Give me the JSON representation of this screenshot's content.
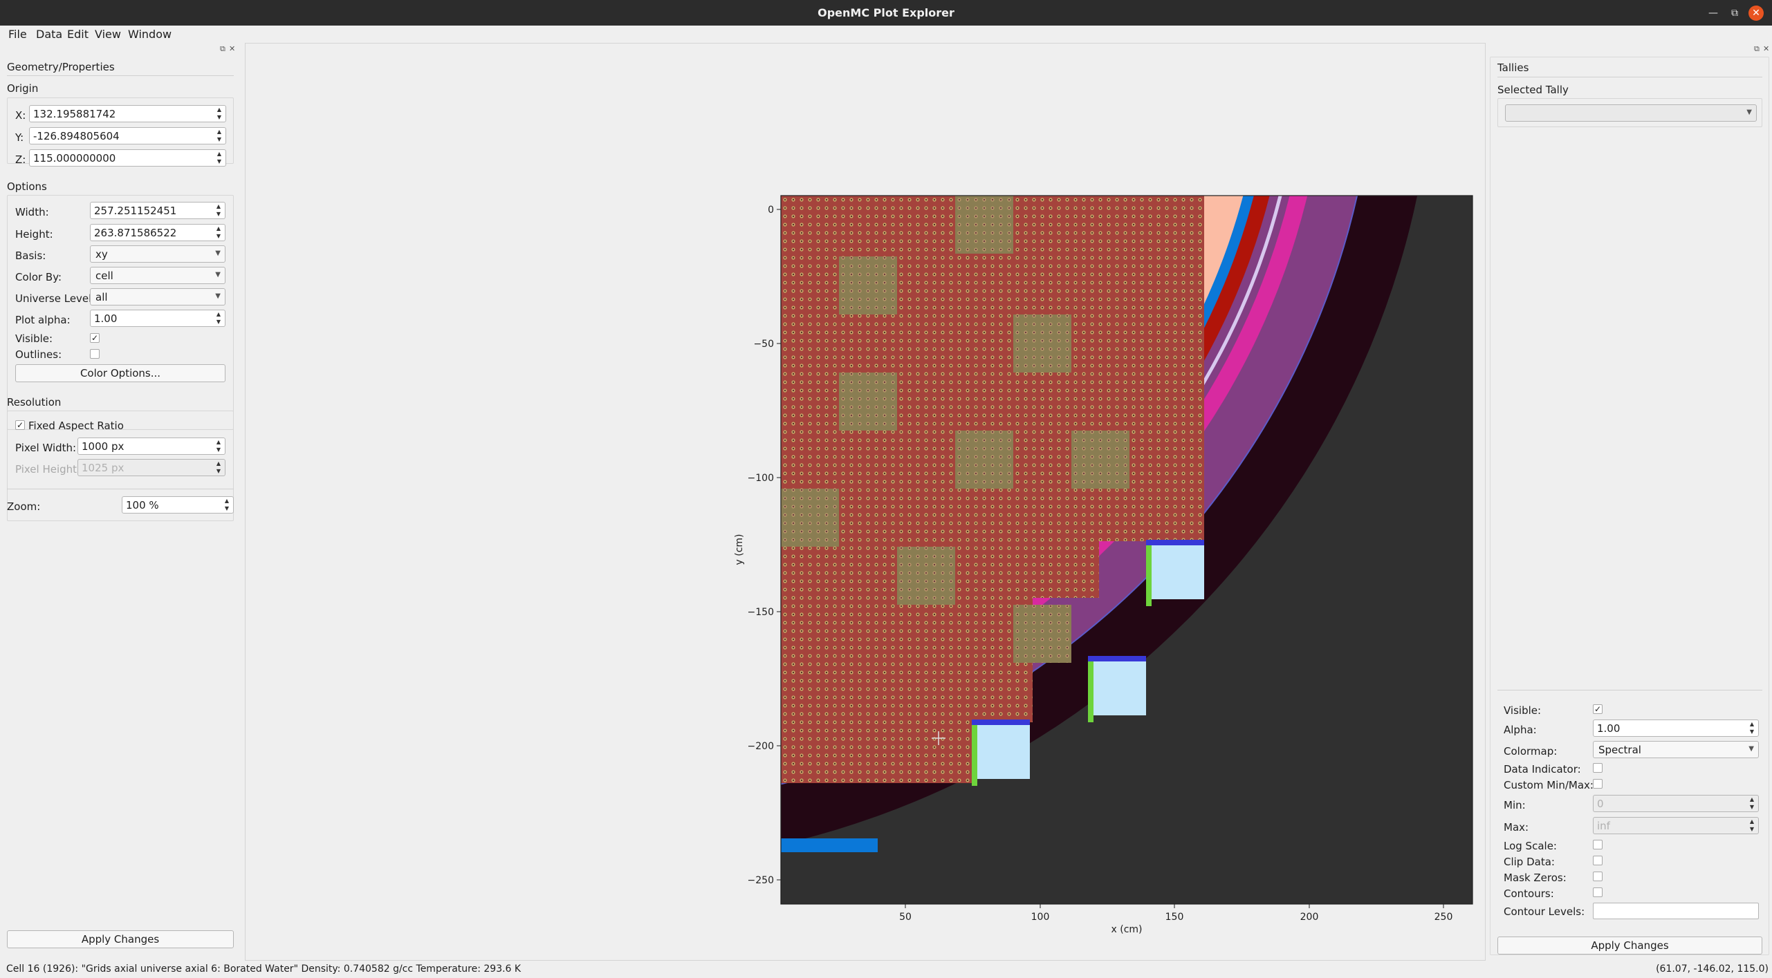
{
  "window": {
    "title": "OpenMC Plot Explorer"
  },
  "menu": [
    "File",
    "Data",
    "Edit",
    "View",
    "Window"
  ],
  "left_panel": {
    "title": "Geometry/Properties",
    "origin": {
      "header": "Origin",
      "x_label": "X:",
      "x_value": "132.195881742",
      "y_label": "Y:",
      "y_value": "-126.894805604",
      "z_label": "Z:",
      "z_value": "115.000000000"
    },
    "options": {
      "header": "Options",
      "width_label": "Width:",
      "width_value": "257.251152451",
      "height_label": "Height:",
      "height_value": "263.871586522",
      "basis_label": "Basis:",
      "basis_value": "xy",
      "colorby_label": "Color By:",
      "colorby_value": "cell",
      "universe_label": "Universe Level:",
      "universe_value": "all",
      "alpha_label": "Plot alpha:",
      "alpha_value": "1.00",
      "visible_label": "Visible:",
      "visible_checked": true,
      "outlines_label": "Outlines:",
      "outlines_checked": false,
      "color_options_button": "Color Options..."
    },
    "resolution": {
      "header": "Resolution",
      "fixed_aspect_label": "Fixed Aspect Ratio",
      "fixed_aspect_checked": true,
      "pixel_width_label": "Pixel Width:",
      "pixel_width_value": "1000 px",
      "pixel_height_label": "Pixel Height:",
      "pixel_height_value": "1025 px"
    },
    "zoom_label": "Zoom:",
    "zoom_value": "100 %",
    "apply_button": "Apply Changes"
  },
  "right_panel": {
    "title": "Tallies",
    "selected_tally_label": "Selected Tally",
    "selected_tally_value": "",
    "visible_label": "Visible:",
    "visible_checked": true,
    "alpha_label": "Alpha:",
    "alpha_value": "1.00",
    "colormap_label": "Colormap:",
    "colormap_value": "Spectral",
    "data_indicator_label": "Data Indicator:",
    "custom_minmax_label": "Custom Min/Max:",
    "min_label": "Min:",
    "min_value": "0",
    "max_label": "Max:",
    "max_value": "inf",
    "log_scale_label": "Log Scale:",
    "clip_data_label": "Clip Data:",
    "mask_zeros_label": "Mask Zeros:",
    "contours_label": "Contours:",
    "contour_levels_label": "Contour Levels:",
    "apply_button": "Apply Changes"
  },
  "plot": {
    "xlabel": "x (cm)",
    "ylabel": "y (cm)",
    "xticks": [
      "50",
      "100",
      "150",
      "200",
      "250"
    ],
    "yticks": [
      "0",
      "−50",
      "−100",
      "−150",
      "−200",
      "−250"
    ],
    "colors": {
      "assembly_red": "#a5433c",
      "assembly_olive": "#8a7d52",
      "reflector_peach": "#fbbca4",
      "water_blue": "#0b78d8",
      "baffle_red": "#b01409",
      "vessel_purple": "#823e83",
      "magenta": "#d82aa0",
      "pink": "#dc7ab8",
      "outer_dark": "#230714",
      "void_gray": "#303030",
      "light_blue": "#c2e6fa",
      "green": "#6ed43c"
    }
  },
  "status": {
    "left": "Cell 16 (1926): \"Grids axial universe axial 6: Borated Water\"  Density: 0.740582 g/cc Temperature: 293.6 K",
    "right": "(61.07, -146.02, 115.0)"
  }
}
